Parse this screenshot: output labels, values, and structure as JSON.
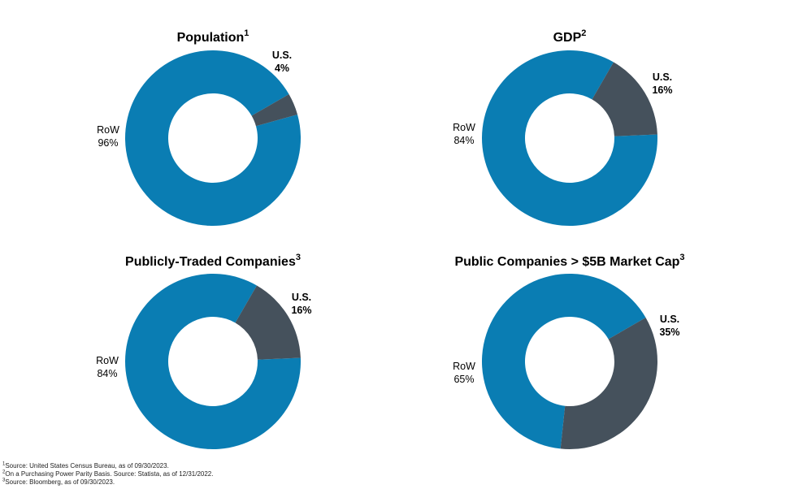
{
  "colors": {
    "row": "#0a7db3",
    "us": "#45515c"
  },
  "chart_data": [
    {
      "type": "pie",
      "title": "Population",
      "title_sup": "1",
      "categories": [
        "U.S.",
        "RoW"
      ],
      "values": [
        4,
        96
      ],
      "value_labels": [
        "4%",
        "96%"
      ]
    },
    {
      "type": "pie",
      "title": "GDP",
      "title_sup": "2",
      "categories": [
        "U.S.",
        "RoW"
      ],
      "values": [
        16,
        84
      ],
      "value_labels": [
        "16%",
        "84%"
      ]
    },
    {
      "type": "pie",
      "title": "Publicly-Traded Companies",
      "title_sup": "3",
      "categories": [
        "U.S.",
        "RoW"
      ],
      "values": [
        16,
        84
      ],
      "value_labels": [
        "16%",
        "84%"
      ]
    },
    {
      "type": "pie",
      "title": "Public Companies > $5B Market Cap",
      "title_sup": "3",
      "categories": [
        "U.S.",
        "RoW"
      ],
      "values": [
        35,
        65
      ],
      "value_labels": [
        "35%",
        "65%"
      ]
    }
  ],
  "footnotes": [
    {
      "sup": "1",
      "text": "Source: United States Census Bureau, as of 09/30/2023."
    },
    {
      "sup": "2",
      "text": "On a Purchasing Power Parity Basis. Source: Statista, as of 12/31/2022."
    },
    {
      "sup": "3",
      "text": "Source: Bloomberg, as of 09/30/2023."
    }
  ]
}
